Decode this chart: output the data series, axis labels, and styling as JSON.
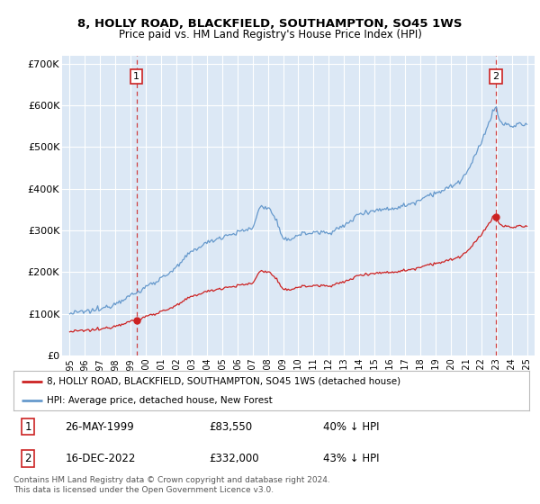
{
  "title": "8, HOLLY ROAD, BLACKFIELD, SOUTHAMPTON, SO45 1WS",
  "subtitle": "Price paid vs. HM Land Registry's House Price Index (HPI)",
  "ylim": [
    0,
    720000
  ],
  "yticks": [
    0,
    100000,
    200000,
    300000,
    400000,
    500000,
    600000,
    700000
  ],
  "ytick_labels": [
    "£0",
    "£100K",
    "£200K",
    "£300K",
    "£400K",
    "£500K",
    "£600K",
    "£700K"
  ],
  "bg_color": "#dce8f5",
  "hpi_color": "#6699cc",
  "price_color": "#cc2222",
  "sale1_x": 1999.375,
  "sale1_price": 83550,
  "sale2_x": 2022.958,
  "sale2_price": 332000,
  "legend_line1": "8, HOLLY ROAD, BLACKFIELD, SOUTHAMPTON, SO45 1WS (detached house)",
  "legend_line2": "HPI: Average price, detached house, New Forest",
  "table_row1": [
    "1",
    "26-MAY-1999",
    "£83,550",
    "40% ↓ HPI"
  ],
  "table_row2": [
    "2",
    "16-DEC-2022",
    "£332,000",
    "43% ↓ HPI"
  ],
  "footnote": "Contains HM Land Registry data © Crown copyright and database right 2024.\nThis data is licensed under the Open Government Licence v3.0."
}
